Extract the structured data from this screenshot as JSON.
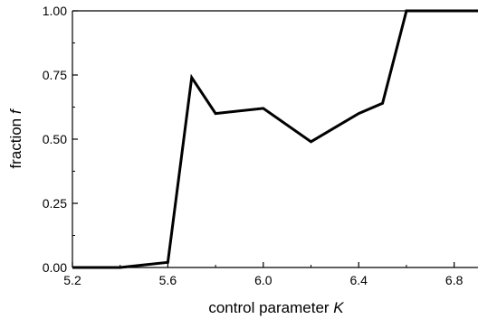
{
  "chart_data": {
    "type": "line",
    "title": "",
    "xlabel": {
      "text": "control parameter ",
      "variable": "K"
    },
    "ylabel": {
      "text": "fraction ",
      "variable": "f"
    },
    "xlim": [
      5.2,
      6.9
    ],
    "ylim": [
      0.0,
      1.0
    ],
    "x_ticks": [
      5.2,
      5.6,
      6.0,
      6.4,
      6.8
    ],
    "x_tick_labels": [
      "5.2",
      "5.6",
      "6.0",
      "6.4",
      "6.8"
    ],
    "y_ticks": [
      0.0,
      0.25,
      0.5,
      0.75,
      1.0
    ],
    "y_tick_labels": [
      "0.00",
      "0.25",
      "0.50",
      "0.75",
      "1.00"
    ],
    "grid": false,
    "legend": "none",
    "series": [
      {
        "color": "#000000",
        "x": [
          5.2,
          5.3,
          5.4,
          5.5,
          5.6,
          5.7,
          5.8,
          6.0,
          6.2,
          6.4,
          6.5,
          6.6,
          6.7,
          6.8,
          6.9
        ],
        "y": [
          0.0,
          0.0,
          0.0,
          0.01,
          0.02,
          0.74,
          0.6,
          0.62,
          0.49,
          0.6,
          0.64,
          1.0,
          1.0,
          1.0,
          1.0
        ]
      }
    ]
  }
}
